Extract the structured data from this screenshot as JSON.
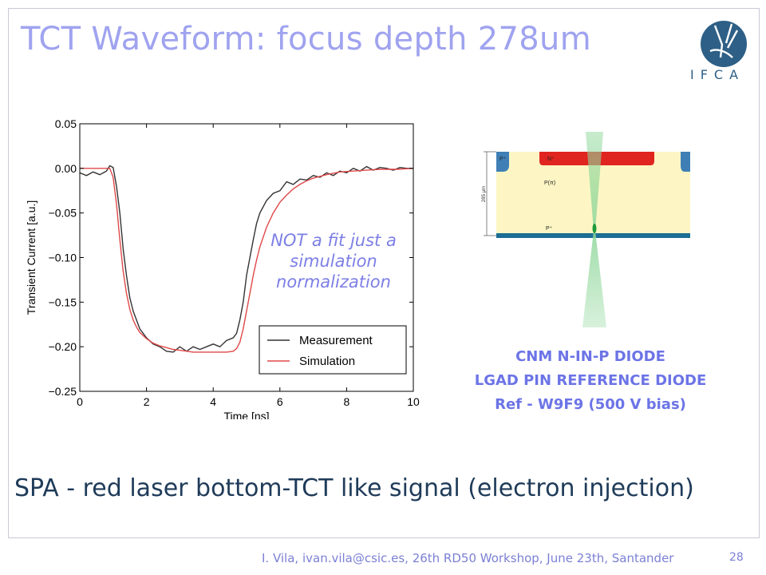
{
  "slide": {
    "title": "TCT Waveform: focus depth 278um",
    "annotation_lines": [
      "NOT a fit just a",
      "simulation",
      "normalization"
    ],
    "diode_info": [
      "CNM N-IN-P DIODE",
      "LGAD PIN REFERENCE DIODE",
      "Ref - W9F9  (500 V bias)"
    ],
    "subtitle": "SPA - red laser  bottom-TCT like signal (electron injection)",
    "footer": "I. Vila, ivan.vila@csic.es, 26th RD50 Workshop, June 23th, Santander",
    "page_number": "28",
    "logo_text": "IFCA"
  },
  "diagram": {
    "labels": {
      "p_plus_top": "P⁺",
      "n_plus": "N⁺",
      "p_pi": "P(π)",
      "p_plus_bottom": "P⁺",
      "thickness": "285 μm"
    },
    "colors": {
      "substrate": "#fdf6c4",
      "n_implant": "#e0241f",
      "backplane": "#1c6e94",
      "edge": "#3f7fb5",
      "laser": "#8fd79a"
    }
  },
  "chart_data": {
    "type": "line",
    "xlabel": "Time [ns]",
    "ylabel": "Transient Current [a.u.]",
    "xlim": [
      0,
      10
    ],
    "ylim": [
      -0.25,
      0.05
    ],
    "xticks": [
      0,
      2,
      4,
      6,
      8,
      10
    ],
    "yticks": [
      0.05,
      0.0,
      -0.05,
      -0.1,
      -0.15,
      -0.2,
      -0.25
    ],
    "ytick_labels": [
      "0.05",
      "0.00",
      "−0.05",
      "−0.10",
      "−0.15",
      "−0.20",
      "−0.25"
    ],
    "grid": false,
    "legend_position": "bottom-right",
    "series": [
      {
        "name": "Measurement",
        "color": "#333333",
        "x": [
          0,
          0.2,
          0.4,
          0.6,
          0.8,
          0.9,
          1.0,
          1.1,
          1.2,
          1.3,
          1.4,
          1.5,
          1.6,
          1.8,
          2.0,
          2.2,
          2.4,
          2.6,
          2.8,
          3.0,
          3.2,
          3.4,
          3.6,
          3.8,
          4.0,
          4.2,
          4.4,
          4.6,
          4.7,
          4.8,
          4.9,
          5.0,
          5.1,
          5.2,
          5.3,
          5.4,
          5.6,
          5.8,
          6.0,
          6.2,
          6.4,
          6.6,
          6.8,
          7.0,
          7.2,
          7.4,
          7.6,
          7.8,
          8.0,
          8.2,
          8.4,
          8.6,
          8.8,
          9.0,
          9.2,
          9.4,
          9.6,
          9.8,
          10.0
        ],
        "y": [
          -0.005,
          -0.008,
          -0.004,
          -0.007,
          -0.003,
          0.003,
          0.001,
          -0.02,
          -0.05,
          -0.09,
          -0.12,
          -0.145,
          -0.16,
          -0.18,
          -0.19,
          -0.197,
          -0.2,
          -0.205,
          -0.206,
          -0.2,
          -0.205,
          -0.2,
          -0.203,
          -0.2,
          -0.197,
          -0.2,
          -0.193,
          -0.19,
          -0.185,
          -0.17,
          -0.15,
          -0.12,
          -0.1,
          -0.08,
          -0.062,
          -0.05,
          -0.036,
          -0.028,
          -0.025,
          -0.015,
          -0.018,
          -0.012,
          -0.013,
          -0.008,
          -0.01,
          -0.005,
          -0.008,
          -0.003,
          -0.005,
          0.0,
          -0.003,
          0.002,
          -0.002,
          0.001,
          0.0,
          -0.002,
          0.001,
          0.0,
          0.0
        ]
      },
      {
        "name": "Simulation",
        "color": "#e04848",
        "x": [
          0,
          0.5,
          0.9,
          1.0,
          1.1,
          1.2,
          1.3,
          1.4,
          1.5,
          1.6,
          1.7,
          1.8,
          2.0,
          2.2,
          2.4,
          2.6,
          2.8,
          3.0,
          3.2,
          3.4,
          3.6,
          3.8,
          4.0,
          4.2,
          4.4,
          4.6,
          4.7,
          4.8,
          4.9,
          5.0,
          5.1,
          5.2,
          5.3,
          5.4,
          5.6,
          5.8,
          6.0,
          6.2,
          6.4,
          6.6,
          6.8,
          7.0,
          7.4,
          7.8,
          8.2,
          8.6,
          9.0,
          9.5,
          10.0
        ],
        "y": [
          0.0,
          0.0,
          0.0,
          -0.01,
          -0.04,
          -0.08,
          -0.115,
          -0.14,
          -0.158,
          -0.17,
          -0.178,
          -0.184,
          -0.191,
          -0.196,
          -0.199,
          -0.201,
          -0.203,
          -0.204,
          -0.205,
          -0.206,
          -0.206,
          -0.206,
          -0.206,
          -0.206,
          -0.206,
          -0.205,
          -0.202,
          -0.195,
          -0.18,
          -0.16,
          -0.14,
          -0.12,
          -0.103,
          -0.088,
          -0.066,
          -0.05,
          -0.038,
          -0.03,
          -0.023,
          -0.018,
          -0.014,
          -0.011,
          -0.007,
          -0.004,
          -0.003,
          -0.002,
          -0.001,
          -0.001,
          0.0
        ]
      }
    ]
  }
}
